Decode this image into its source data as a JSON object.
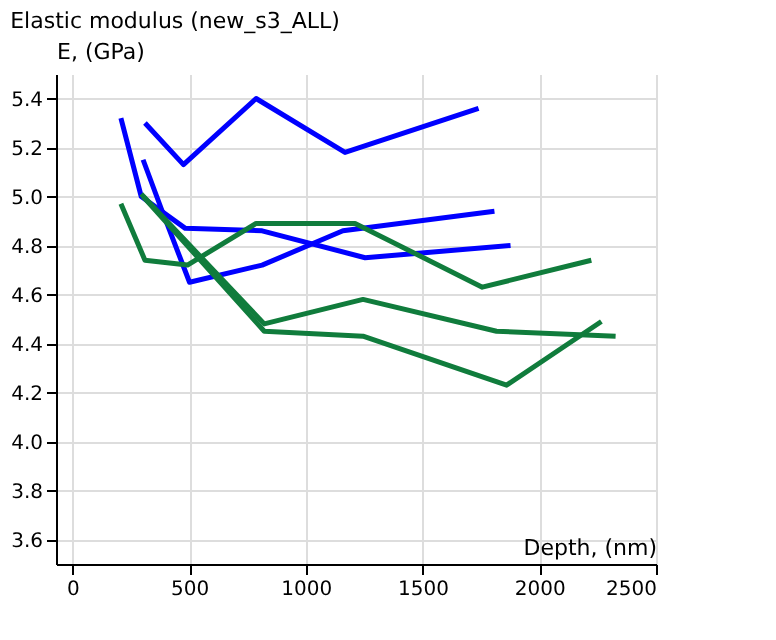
{
  "chart_data": {
    "type": "line",
    "title": "Elastic modulus (new_s3_ALL)",
    "xlabel": "Depth, (nm)",
    "ylabel": "E, (GPa)",
    "xlim": [
      -70,
      2500
    ],
    "xticks": [
      0,
      500,
      1000,
      1500,
      2000,
      2500
    ],
    "ylim": [
      3.5,
      5.5
    ],
    "yticks": [
      3.6,
      3.8,
      {
        "value": 4,
        "label": "4.0"
      },
      4.2,
      4.4,
      4.6,
      4.8,
      {
        "value": 5,
        "label": "5.0"
      },
      5.2,
      5.4
    ],
    "grid": true,
    "legend": false,
    "marker": "none",
    "line_style": "solid",
    "series": [
      {
        "color": "#0000ff",
        "x": [
          311,
          476,
          787,
          1168,
          1740
        ],
        "values": [
          5.3,
          5.13,
          5.4,
          5.18,
          5.36
        ]
      },
      {
        "color": "#0000ff",
        "x": [
          208,
          295,
          484,
          813,
          1254,
          1877
        ],
        "values": [
          5.32,
          5.0,
          4.87,
          4.86,
          4.75,
          4.8
        ]
      },
      {
        "color": "#0000ff",
        "x": [
          303,
          381,
          502,
          813,
          1159,
          1808
        ],
        "values": [
          5.15,
          4.95,
          4.65,
          4.72,
          4.86,
          4.94
        ]
      },
      {
        "color": "#107c3c",
        "x": [
          208,
          311,
          493,
          787,
          1211,
          1756,
          2223
        ],
        "values": [
          4.97,
          4.74,
          4.72,
          4.89,
          4.89,
          4.63,
          4.74
        ]
      },
      {
        "color": "#107c3c",
        "x": [
          295,
          822,
          1245,
          1817,
          2327
        ],
        "values": [
          5.01,
          4.48,
          4.58,
          4.45,
          4.43
        ]
      },
      {
        "color": "#107c3c",
        "x": [
          303,
          822,
          1245,
          1860,
          2266
        ],
        "values": [
          5.0,
          4.45,
          4.43,
          4.23,
          4.49
        ]
      }
    ]
  }
}
